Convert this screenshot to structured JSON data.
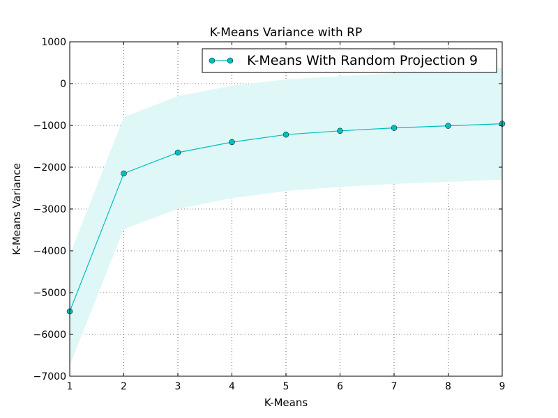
{
  "chart_data": {
    "type": "line",
    "title": "K-Means Variance with RP",
    "xlabel": "K-Means",
    "ylabel": "K-Means Variance",
    "xlim": [
      1,
      9
    ],
    "ylim": [
      -7000,
      1000
    ],
    "xticks": [
      1,
      2,
      3,
      4,
      5,
      6,
      7,
      8,
      9
    ],
    "yticks": [
      -7000,
      -6000,
      -5000,
      -4000,
      -3000,
      -2000,
      -1000,
      0,
      1000
    ],
    "ytick_labels": [
      "−7000",
      "−6000",
      "−5000",
      "−4000",
      "−3000",
      "−2000",
      "−1000",
      "0",
      "1000"
    ],
    "grid": true,
    "legend": "top-right",
    "series": [
      {
        "name": "K-Means With Random Projection 9",
        "color": "#00bfbf",
        "band_color": "#e0f7f7",
        "x": [
          1,
          2,
          3,
          4,
          5,
          6,
          7,
          8,
          9
        ],
        "values": [
          -5450,
          -2150,
          -1650,
          -1400,
          -1220,
          -1130,
          -1060,
          -1010,
          -960
        ],
        "upper": [
          -4100,
          -800,
          -300,
          -50,
          100,
          180,
          250,
          300,
          380
        ],
        "lower": [
          -6750,
          -3480,
          -3000,
          -2740,
          -2570,
          -2470,
          -2400,
          -2350,
          -2300
        ]
      }
    ]
  }
}
